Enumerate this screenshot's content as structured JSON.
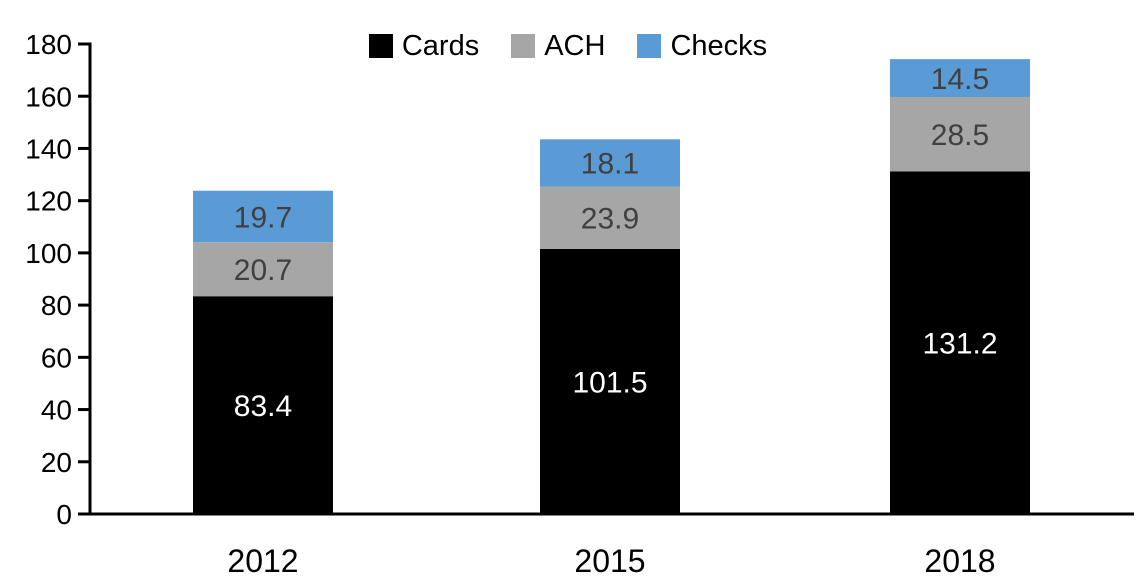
{
  "chart_data": {
    "type": "bar",
    "stacked": true,
    "title": "",
    "xlabel": "",
    "ylabel": "",
    "categories": [
      "2012",
      "2015",
      "2018"
    ],
    "series": [
      {
        "name": "Cards",
        "color": "#000000",
        "label_color": "#ffffff",
        "values": [
          83.4,
          101.5,
          131.2
        ]
      },
      {
        "name": "ACH",
        "color": "#a6a6a6",
        "label_color": "#404040",
        "values": [
          20.7,
          23.9,
          28.5
        ]
      },
      {
        "name": "Checks",
        "color": "#5b9bd5",
        "label_color": "#404040",
        "values": [
          19.7,
          18.1,
          14.5
        ]
      }
    ],
    "totals": [
      123.8,
      143.5,
      174.2
    ],
    "ylim": [
      0,
      180
    ],
    "yticks": [
      0,
      20,
      40,
      60,
      80,
      100,
      120,
      140,
      160,
      180
    ],
    "grid": false,
    "legend_position": "top-center",
    "data_labels": "one-decimal",
    "axis_color": "#000000"
  }
}
